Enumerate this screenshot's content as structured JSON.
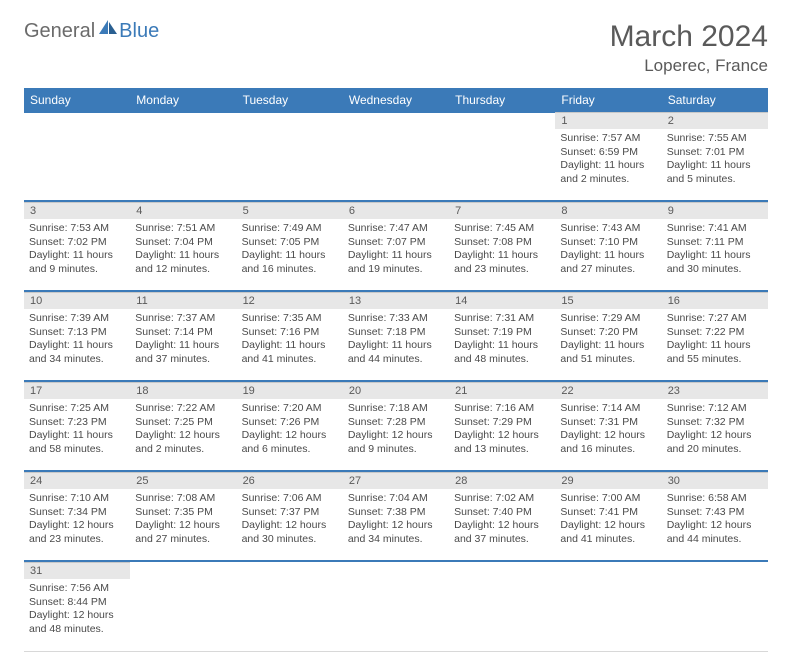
{
  "logo": {
    "gray": "General",
    "blue": "Blue"
  },
  "header": {
    "title": "March 2024",
    "location": "Loperec, France"
  },
  "colors": {
    "accent": "#3b7ab8",
    "header_text": "#ffffff",
    "daynum_bg": "#e7e7e7",
    "text": "#4a4a4a",
    "logo_gray": "#6b6b6b"
  },
  "day_names": [
    "Sunday",
    "Monday",
    "Tuesday",
    "Wednesday",
    "Thursday",
    "Friday",
    "Saturday"
  ],
  "weeks": [
    [
      null,
      null,
      null,
      null,
      null,
      {
        "n": "1",
        "sr": "7:57 AM",
        "ss": "6:59 PM",
        "dl": "11 hours and 2 minutes."
      },
      {
        "n": "2",
        "sr": "7:55 AM",
        "ss": "7:01 PM",
        "dl": "11 hours and 5 minutes."
      }
    ],
    [
      {
        "n": "3",
        "sr": "7:53 AM",
        "ss": "7:02 PM",
        "dl": "11 hours and 9 minutes."
      },
      {
        "n": "4",
        "sr": "7:51 AM",
        "ss": "7:04 PM",
        "dl": "11 hours and 12 minutes."
      },
      {
        "n": "5",
        "sr": "7:49 AM",
        "ss": "7:05 PM",
        "dl": "11 hours and 16 minutes."
      },
      {
        "n": "6",
        "sr": "7:47 AM",
        "ss": "7:07 PM",
        "dl": "11 hours and 19 minutes."
      },
      {
        "n": "7",
        "sr": "7:45 AM",
        "ss": "7:08 PM",
        "dl": "11 hours and 23 minutes."
      },
      {
        "n": "8",
        "sr": "7:43 AM",
        "ss": "7:10 PM",
        "dl": "11 hours and 27 minutes."
      },
      {
        "n": "9",
        "sr": "7:41 AM",
        "ss": "7:11 PM",
        "dl": "11 hours and 30 minutes."
      }
    ],
    [
      {
        "n": "10",
        "sr": "7:39 AM",
        "ss": "7:13 PM",
        "dl": "11 hours and 34 minutes."
      },
      {
        "n": "11",
        "sr": "7:37 AM",
        "ss": "7:14 PM",
        "dl": "11 hours and 37 minutes."
      },
      {
        "n": "12",
        "sr": "7:35 AM",
        "ss": "7:16 PM",
        "dl": "11 hours and 41 minutes."
      },
      {
        "n": "13",
        "sr": "7:33 AM",
        "ss": "7:18 PM",
        "dl": "11 hours and 44 minutes."
      },
      {
        "n": "14",
        "sr": "7:31 AM",
        "ss": "7:19 PM",
        "dl": "11 hours and 48 minutes."
      },
      {
        "n": "15",
        "sr": "7:29 AM",
        "ss": "7:20 PM",
        "dl": "11 hours and 51 minutes."
      },
      {
        "n": "16",
        "sr": "7:27 AM",
        "ss": "7:22 PM",
        "dl": "11 hours and 55 minutes."
      }
    ],
    [
      {
        "n": "17",
        "sr": "7:25 AM",
        "ss": "7:23 PM",
        "dl": "11 hours and 58 minutes."
      },
      {
        "n": "18",
        "sr": "7:22 AM",
        "ss": "7:25 PM",
        "dl": "12 hours and 2 minutes."
      },
      {
        "n": "19",
        "sr": "7:20 AM",
        "ss": "7:26 PM",
        "dl": "12 hours and 6 minutes."
      },
      {
        "n": "20",
        "sr": "7:18 AM",
        "ss": "7:28 PM",
        "dl": "12 hours and 9 minutes."
      },
      {
        "n": "21",
        "sr": "7:16 AM",
        "ss": "7:29 PM",
        "dl": "12 hours and 13 minutes."
      },
      {
        "n": "22",
        "sr": "7:14 AM",
        "ss": "7:31 PM",
        "dl": "12 hours and 16 minutes."
      },
      {
        "n": "23",
        "sr": "7:12 AM",
        "ss": "7:32 PM",
        "dl": "12 hours and 20 minutes."
      }
    ],
    [
      {
        "n": "24",
        "sr": "7:10 AM",
        "ss": "7:34 PM",
        "dl": "12 hours and 23 minutes."
      },
      {
        "n": "25",
        "sr": "7:08 AM",
        "ss": "7:35 PM",
        "dl": "12 hours and 27 minutes."
      },
      {
        "n": "26",
        "sr": "7:06 AM",
        "ss": "7:37 PM",
        "dl": "12 hours and 30 minutes."
      },
      {
        "n": "27",
        "sr": "7:04 AM",
        "ss": "7:38 PM",
        "dl": "12 hours and 34 minutes."
      },
      {
        "n": "28",
        "sr": "7:02 AM",
        "ss": "7:40 PM",
        "dl": "12 hours and 37 minutes."
      },
      {
        "n": "29",
        "sr": "7:00 AM",
        "ss": "7:41 PM",
        "dl": "12 hours and 41 minutes."
      },
      {
        "n": "30",
        "sr": "6:58 AM",
        "ss": "7:43 PM",
        "dl": "12 hours and 44 minutes."
      }
    ],
    [
      {
        "n": "31",
        "sr": "7:56 AM",
        "ss": "8:44 PM",
        "dl": "12 hours and 48 minutes."
      },
      null,
      null,
      null,
      null,
      null,
      null
    ]
  ],
  "labels": {
    "sunrise": "Sunrise: ",
    "sunset": "Sunset: ",
    "daylight": "Daylight: "
  }
}
